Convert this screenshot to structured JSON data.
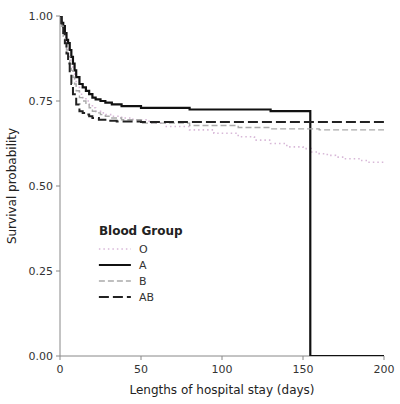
{
  "chart_data": {
    "type": "step",
    "xlabel": "Lengths of hospital stay (days)",
    "ylabel": "Survival probability",
    "xlim": [
      0,
      200
    ],
    "ylim": [
      0.0,
      1.0
    ],
    "xticks": [
      0,
      50,
      100,
      150,
      200
    ],
    "yticks": [
      {
        "value": 0.0,
        "label": "0.00"
      },
      {
        "value": 0.25,
        "label": "0.25"
      },
      {
        "value": 0.5,
        "label": "0.50"
      },
      {
        "value": 0.75,
        "label": "0.75"
      },
      {
        "value": 1.0,
        "label": "1.00"
      }
    ],
    "grid": false,
    "legend": "lower left",
    "legend_title": "Blood Group",
    "series": [
      {
        "name": "O",
        "color": "#d8b8d8",
        "line_style": "dotted",
        "x": [
          0,
          1,
          2,
          3,
          4,
          5,
          6,
          7,
          8,
          9,
          10,
          12,
          14,
          16,
          18,
          20,
          22,
          25,
          28,
          32,
          38,
          45,
          55,
          65,
          80,
          95,
          110,
          120,
          130,
          140,
          150,
          155,
          160,
          165,
          170,
          175,
          180,
          185,
          190,
          200
        ],
        "values": [
          1.0,
          0.98,
          0.96,
          0.94,
          0.91,
          0.89,
          0.87,
          0.85,
          0.83,
          0.81,
          0.79,
          0.77,
          0.76,
          0.75,
          0.74,
          0.73,
          0.72,
          0.715,
          0.71,
          0.705,
          0.7,
          0.695,
          0.685,
          0.675,
          0.665,
          0.655,
          0.645,
          0.635,
          0.625,
          0.615,
          0.61,
          0.6,
          0.595,
          0.59,
          0.585,
          0.58,
          0.58,
          0.575,
          0.57,
          0.57
        ]
      },
      {
        "name": "A",
        "color": "#111111",
        "line_style": "solid",
        "x": [
          0,
          1,
          2,
          3,
          4,
          5,
          6,
          7,
          8,
          9,
          10,
          12,
          14,
          16,
          18,
          20,
          22,
          25,
          28,
          32,
          38,
          50,
          80,
          130,
          154,
          154.5,
          200
        ],
        "values": [
          1.0,
          0.98,
          0.97,
          0.95,
          0.93,
          0.92,
          0.9,
          0.88,
          0.86,
          0.84,
          0.82,
          0.8,
          0.79,
          0.78,
          0.77,
          0.76,
          0.755,
          0.75,
          0.745,
          0.74,
          0.735,
          0.73,
          0.725,
          0.72,
          0.72,
          0.0,
          0.0
        ]
      },
      {
        "name": "B",
        "color": "#aaaaaa",
        "line_style": "dashed",
        "x": [
          0,
          1,
          2,
          3,
          4,
          5,
          6,
          7,
          8,
          9,
          10,
          12,
          14,
          16,
          18,
          20,
          22,
          25,
          28,
          32,
          38,
          50,
          80,
          110,
          130,
          160,
          200
        ],
        "values": [
          1.0,
          0.97,
          0.94,
          0.92,
          0.9,
          0.88,
          0.86,
          0.84,
          0.82,
          0.8,
          0.78,
          0.76,
          0.75,
          0.74,
          0.73,
          0.72,
          0.715,
          0.71,
          0.705,
          0.7,
          0.695,
          0.685,
          0.678,
          0.672,
          0.668,
          0.665,
          0.665
        ]
      },
      {
        "name": "AB",
        "color": "#222222",
        "line_style": "longdash",
        "x": [
          0,
          1,
          2,
          3,
          4,
          5,
          6,
          7,
          8,
          10,
          12,
          14,
          16,
          18,
          20,
          24,
          28,
          35,
          50,
          130,
          200
        ],
        "values": [
          1.0,
          0.97,
          0.95,
          0.92,
          0.89,
          0.86,
          0.83,
          0.8,
          0.77,
          0.74,
          0.72,
          0.715,
          0.71,
          0.705,
          0.7,
          0.695,
          0.692,
          0.69,
          0.688,
          0.688,
          0.688
        ]
      }
    ]
  }
}
